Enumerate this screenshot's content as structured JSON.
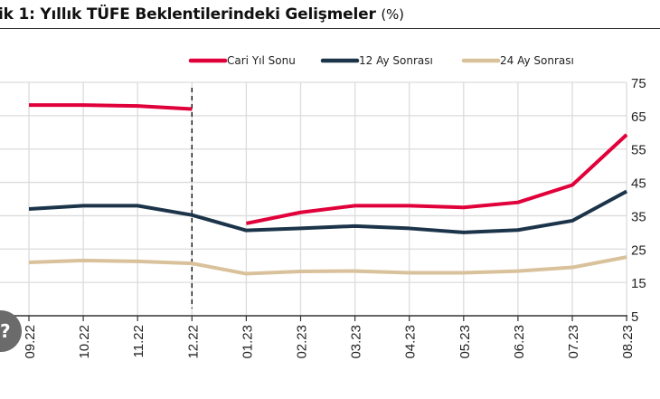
{
  "chart_data": {
    "type": "line",
    "title": "ik 1: Yıllık TÜFE Beklentilerindeki Gelişmeler",
    "title_unit": "(%)",
    "categories": [
      "09.22",
      "10.22",
      "11.22",
      "12.22",
      "01.23",
      "02.23",
      "03.23",
      "04.23",
      "05.23",
      "06.23",
      "07.23",
      "08.23"
    ],
    "y_ticks": [
      "75",
      "65",
      "55",
      "45",
      "35",
      "25",
      "15",
      "5"
    ],
    "ylim": [
      5,
      75
    ],
    "y_axis_side": "right",
    "grid": true,
    "legend_position": "top",
    "vertical_marker_at": "12.22",
    "series": [
      {
        "name": "Cari Yıl Sonu",
        "color": "#e0003a",
        "values": [
          68.2,
          68.2,
          67.9,
          67.0,
          32.7,
          36.0,
          38.0,
          38.0,
          37.5,
          39.0,
          44.2,
          59.3
        ]
      },
      {
        "name": "12 Ay Sonrası",
        "color": "#1c344a",
        "values": [
          37.0,
          38.0,
          38.0,
          35.2,
          30.6,
          31.2,
          31.9,
          31.2,
          30.0,
          30.7,
          33.5,
          42.3
        ]
      },
      {
        "name": "24 Ay Sonrası",
        "color": "#d9c19b",
        "values": [
          21.0,
          21.6,
          21.3,
          20.7,
          17.6,
          18.3,
          18.4,
          17.9,
          17.9,
          18.4,
          19.5,
          22.6
        ]
      }
    ]
  }
}
